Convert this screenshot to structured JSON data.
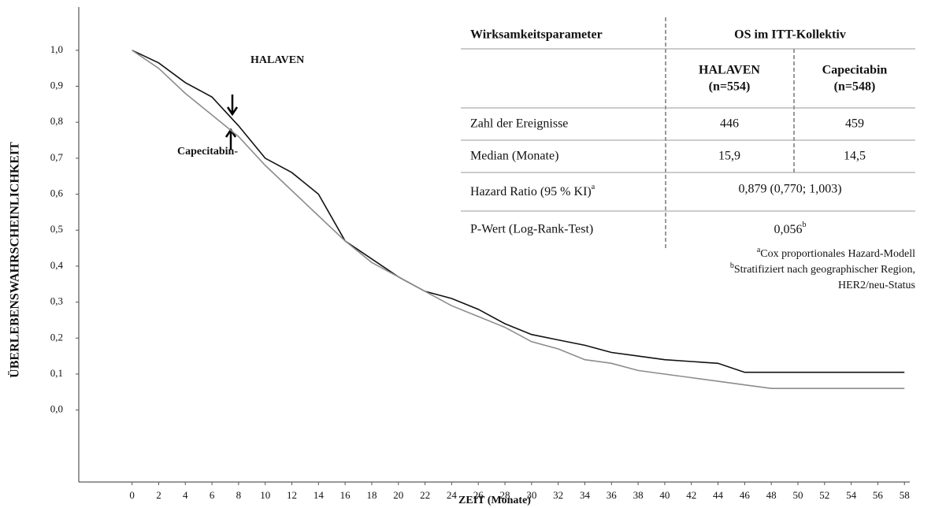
{
  "chart_data": {
    "type": "line",
    "x_label": "ZEIT (Monate)",
    "y_label": "ÜBERLEBENSWAHRSCHEINLICHKEIT",
    "x": [
      0,
      2,
      4,
      6,
      8,
      10,
      12,
      14,
      16,
      18,
      20,
      22,
      24,
      26,
      28,
      30,
      32,
      34,
      36,
      38,
      40,
      42,
      44,
      46,
      48,
      50,
      52,
      54,
      56,
      58
    ],
    "series": [
      {
        "name": "HALAVEN",
        "color": "#111111",
        "values": [
          1.0,
          0.965,
          0.91,
          0.87,
          0.79,
          0.7,
          0.66,
          0.6,
          0.47,
          0.42,
          0.37,
          0.33,
          0.31,
          0.28,
          0.24,
          0.21,
          0.195,
          0.18,
          0.16,
          0.15,
          0.14,
          0.135,
          0.13,
          0.105,
          0.105,
          0.105,
          0.105,
          0.105,
          0.105,
          0.105
        ]
      },
      {
        "name": "Capecitabin-",
        "color": "#8c8c8c",
        "values": [
          1.0,
          0.95,
          0.88,
          0.82,
          0.76,
          0.68,
          0.61,
          0.54,
          0.47,
          0.41,
          0.37,
          0.33,
          0.29,
          0.26,
          0.23,
          0.19,
          0.17,
          0.14,
          0.13,
          0.11,
          0.1,
          0.09,
          0.08,
          0.07,
          0.06,
          0.06,
          0.06,
          0.06,
          0.06,
          0.06
        ]
      }
    ],
    "xlim": [
      -4,
      58.4
    ],
    "ylim": [
      -0.2,
      1.12
    ],
    "xticks": [
      0,
      2,
      4,
      6,
      8,
      10,
      12,
      14,
      16,
      18,
      20,
      22,
      24,
      26,
      28,
      30,
      32,
      34,
      36,
      38,
      40,
      42,
      44,
      46,
      48,
      50,
      52,
      54,
      56,
      58
    ],
    "yticks": [
      {
        "value": 0,
        "label": "0,0"
      },
      {
        "value": 0.1,
        "label": "0,1"
      },
      {
        "value": 0.2,
        "label": "0,2"
      },
      {
        "value": 0.3,
        "label": "0,3"
      },
      {
        "value": 0.4,
        "label": "0,4"
      },
      {
        "value": 0.5,
        "label": "0,5"
      },
      {
        "value": 0.6,
        "label": "0,6"
      },
      {
        "value": 0.7,
        "label": "0,7"
      },
      {
        "value": 0.8,
        "label": "0,8"
      },
      {
        "value": 0.9,
        "label": "0,9"
      },
      {
        "value": 1,
        "label": "1,0"
      }
    ],
    "grid": false
  },
  "table": {
    "header": [
      "Wirksamkeitsparameter",
      "OS im ITT-Kollektiv"
    ],
    "subheader": [
      [
        "HALAVEN",
        "(n=554)"
      ],
      [
        "Capecitabin",
        "(n=548)"
      ]
    ],
    "rows": [
      {
        "label": "Zahl der Ereignisse",
        "values": [
          "446",
          "459"
        ]
      },
      {
        "label": "Median (Monate)",
        "values": [
          "15,9",
          "14,5"
        ]
      },
      {
        "label": "Hazard Ratio (95 % KI)",
        "note": "a",
        "value": "0,879 (0,770; 1,003)"
      },
      {
        "label": "P-Wert (Log-Rank-Test)",
        "value": "0,056",
        "note": "b"
      }
    ],
    "footnotes": [
      {
        "mark": "a",
        "lines": [
          "Cox proportionales Hazard-Modell"
        ]
      },
      {
        "mark": "b",
        "lines": [
          "Stratifiziert nach geographischer Region,",
          "HER2/neu-Status"
        ]
      }
    ]
  }
}
